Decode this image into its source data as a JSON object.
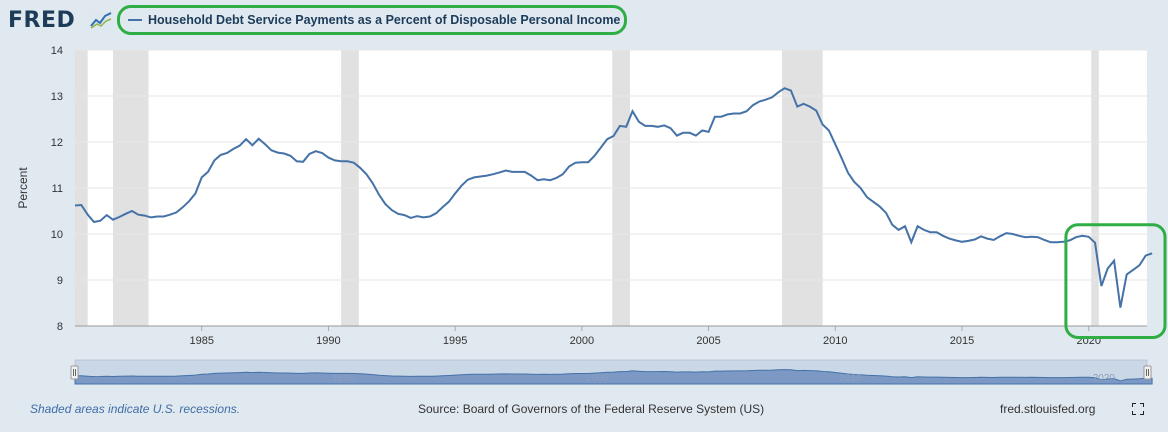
{
  "brand": {
    "name": "FRED",
    "logo_icon": "fred-graph-icon"
  },
  "colors": {
    "series": "#4572a7",
    "recession": "#e1e1e1",
    "highlight": "#2fae45",
    "background": "#e1e9f0",
    "plot": "#ffffff"
  },
  "footer": {
    "note": "Shaded areas indicate U.S. recessions.",
    "source": "Source: Board of Governors of the Federal Reserve System (US)",
    "url": "fred.stlouisfed.org",
    "fullscreen_icon": "fullscreen-icon"
  },
  "chart_data": {
    "type": "line",
    "title": "Household Debt Service Payments as a Percent of Disposable Personal Income",
    "ylabel": "Percent",
    "xlabel": "",
    "xlim": [
      1980,
      2022.3
    ],
    "ylim": [
      8,
      14
    ],
    "yticks": [
      8,
      9,
      10,
      11,
      12,
      13,
      14
    ],
    "xticks": [
      1985,
      1990,
      1995,
      2000,
      2005,
      2010,
      2015,
      2020
    ],
    "grid": true,
    "recessions": [
      [
        1980.0,
        1980.5
      ],
      [
        1981.5,
        1982.9
      ],
      [
        1990.5,
        1991.2
      ],
      [
        2001.2,
        2001.9
      ],
      [
        2007.9,
        2009.5
      ],
      [
        2020.1,
        2020.4
      ]
    ],
    "series": [
      {
        "name": "",
        "points": [
          [
            1980.0,
            10.62
          ],
          [
            1980.25,
            10.63
          ],
          [
            1980.5,
            10.42
          ],
          [
            1980.75,
            10.26
          ],
          [
            1981.0,
            10.29
          ],
          [
            1981.25,
            10.41
          ],
          [
            1981.5,
            10.31
          ],
          [
            1981.75,
            10.37
          ],
          [
            1982.0,
            10.44
          ],
          [
            1982.25,
            10.5
          ],
          [
            1982.5,
            10.42
          ],
          [
            1982.75,
            10.4
          ],
          [
            1983.0,
            10.36
          ],
          [
            1983.25,
            10.38
          ],
          [
            1983.5,
            10.38
          ],
          [
            1983.75,
            10.42
          ],
          [
            1984.0,
            10.47
          ],
          [
            1984.25,
            10.58
          ],
          [
            1984.5,
            10.71
          ],
          [
            1984.75,
            10.88
          ],
          [
            1985.0,
            11.23
          ],
          [
            1985.25,
            11.35
          ],
          [
            1985.5,
            11.6
          ],
          [
            1985.75,
            11.72
          ],
          [
            1986.0,
            11.76
          ],
          [
            1986.25,
            11.85
          ],
          [
            1986.5,
            11.92
          ],
          [
            1986.75,
            12.06
          ],
          [
            1987.0,
            11.93
          ],
          [
            1987.25,
            12.07
          ],
          [
            1987.5,
            11.95
          ],
          [
            1987.75,
            11.82
          ],
          [
            1988.0,
            11.77
          ],
          [
            1988.25,
            11.75
          ],
          [
            1988.5,
            11.7
          ],
          [
            1988.75,
            11.58
          ],
          [
            1989.0,
            11.57
          ],
          [
            1989.25,
            11.74
          ],
          [
            1989.5,
            11.8
          ],
          [
            1989.75,
            11.76
          ],
          [
            1990.0,
            11.66
          ],
          [
            1990.25,
            11.6
          ],
          [
            1990.5,
            11.58
          ],
          [
            1990.75,
            11.58
          ],
          [
            1991.0,
            11.55
          ],
          [
            1991.25,
            11.44
          ],
          [
            1991.5,
            11.3
          ],
          [
            1991.75,
            11.1
          ],
          [
            1992.0,
            10.85
          ],
          [
            1992.25,
            10.65
          ],
          [
            1992.5,
            10.52
          ],
          [
            1992.75,
            10.44
          ],
          [
            1993.0,
            10.41
          ],
          [
            1993.25,
            10.35
          ],
          [
            1993.5,
            10.39
          ],
          [
            1993.75,
            10.36
          ],
          [
            1994.0,
            10.38
          ],
          [
            1994.25,
            10.45
          ],
          [
            1994.5,
            10.58
          ],
          [
            1994.75,
            10.7
          ],
          [
            1995.0,
            10.88
          ],
          [
            1995.25,
            11.05
          ],
          [
            1995.5,
            11.18
          ],
          [
            1995.75,
            11.23
          ],
          [
            1996.0,
            11.25
          ],
          [
            1996.25,
            11.27
          ],
          [
            1996.5,
            11.3
          ],
          [
            1996.75,
            11.34
          ],
          [
            1997.0,
            11.38
          ],
          [
            1997.25,
            11.35
          ],
          [
            1997.5,
            11.35
          ],
          [
            1997.75,
            11.35
          ],
          [
            1998.0,
            11.27
          ],
          [
            1998.25,
            11.17
          ],
          [
            1998.5,
            11.19
          ],
          [
            1998.75,
            11.17
          ],
          [
            1999.0,
            11.22
          ],
          [
            1999.25,
            11.3
          ],
          [
            1999.5,
            11.47
          ],
          [
            1999.75,
            11.55
          ],
          [
            2000.0,
            11.56
          ],
          [
            2000.25,
            11.56
          ],
          [
            2000.5,
            11.7
          ],
          [
            2000.75,
            11.88
          ],
          [
            2001.0,
            12.06
          ],
          [
            2001.25,
            12.13
          ],
          [
            2001.5,
            12.35
          ],
          [
            2001.75,
            12.33
          ],
          [
            2002.0,
            12.67
          ],
          [
            2002.25,
            12.44
          ],
          [
            2002.5,
            12.35
          ],
          [
            2002.75,
            12.35
          ],
          [
            2003.0,
            12.33
          ],
          [
            2003.25,
            12.36
          ],
          [
            2003.5,
            12.3
          ],
          [
            2003.75,
            12.14
          ],
          [
            2004.0,
            12.2
          ],
          [
            2004.25,
            12.2
          ],
          [
            2004.5,
            12.14
          ],
          [
            2004.75,
            12.25
          ],
          [
            2005.0,
            12.22
          ],
          [
            2005.25,
            12.55
          ],
          [
            2005.5,
            12.55
          ],
          [
            2005.75,
            12.6
          ],
          [
            2006.0,
            12.62
          ],
          [
            2006.25,
            12.62
          ],
          [
            2006.5,
            12.67
          ],
          [
            2006.75,
            12.8
          ],
          [
            2007.0,
            12.88
          ],
          [
            2007.25,
            12.92
          ],
          [
            2007.5,
            12.97
          ],
          [
            2007.75,
            13.08
          ],
          [
            2008.0,
            13.17
          ],
          [
            2008.25,
            13.12
          ],
          [
            2008.5,
            12.77
          ],
          [
            2008.75,
            12.83
          ],
          [
            2009.0,
            12.77
          ],
          [
            2009.25,
            12.68
          ],
          [
            2009.5,
            12.38
          ],
          [
            2009.75,
            12.25
          ],
          [
            2010.0,
            11.95
          ],
          [
            2010.25,
            11.65
          ],
          [
            2010.5,
            11.33
          ],
          [
            2010.75,
            11.13
          ],
          [
            2011.0,
            11.0
          ],
          [
            2011.25,
            10.8
          ],
          [
            2011.5,
            10.7
          ],
          [
            2011.75,
            10.6
          ],
          [
            2012.0,
            10.46
          ],
          [
            2012.25,
            10.2
          ],
          [
            2012.5,
            10.09
          ],
          [
            2012.75,
            10.17
          ],
          [
            2013.0,
            9.82
          ],
          [
            2013.25,
            10.17
          ],
          [
            2013.5,
            10.09
          ],
          [
            2013.75,
            10.04
          ],
          [
            2014.0,
            10.04
          ],
          [
            2014.25,
            9.96
          ],
          [
            2014.5,
            9.9
          ],
          [
            2014.75,
            9.86
          ],
          [
            2015.0,
            9.83
          ],
          [
            2015.25,
            9.85
          ],
          [
            2015.5,
            9.88
          ],
          [
            2015.75,
            9.95
          ],
          [
            2016.0,
            9.9
          ],
          [
            2016.25,
            9.87
          ],
          [
            2016.5,
            9.95
          ],
          [
            2016.75,
            10.02
          ],
          [
            2017.0,
            10.0
          ],
          [
            2017.25,
            9.96
          ],
          [
            2017.5,
            9.93
          ],
          [
            2017.75,
            9.94
          ],
          [
            2018.0,
            9.93
          ],
          [
            2018.25,
            9.87
          ],
          [
            2018.5,
            9.82
          ],
          [
            2018.75,
            9.82
          ],
          [
            2019.0,
            9.83
          ],
          [
            2019.25,
            9.86
          ],
          [
            2019.5,
            9.93
          ],
          [
            2019.75,
            9.96
          ],
          [
            2020.0,
            9.94
          ],
          [
            2020.25,
            9.81
          ],
          [
            2020.5,
            8.87
          ],
          [
            2020.75,
            9.25
          ],
          [
            2021.0,
            9.42
          ],
          [
            2021.25,
            8.4
          ],
          [
            2021.5,
            9.12
          ],
          [
            2021.75,
            9.22
          ],
          [
            2022.0,
            9.32
          ],
          [
            2022.25,
            9.53
          ],
          [
            2022.5,
            9.58
          ]
        ]
      }
    ],
    "navigator": {
      "labels": [
        "1990",
        "2000",
        "2010",
        "2020"
      ]
    }
  }
}
